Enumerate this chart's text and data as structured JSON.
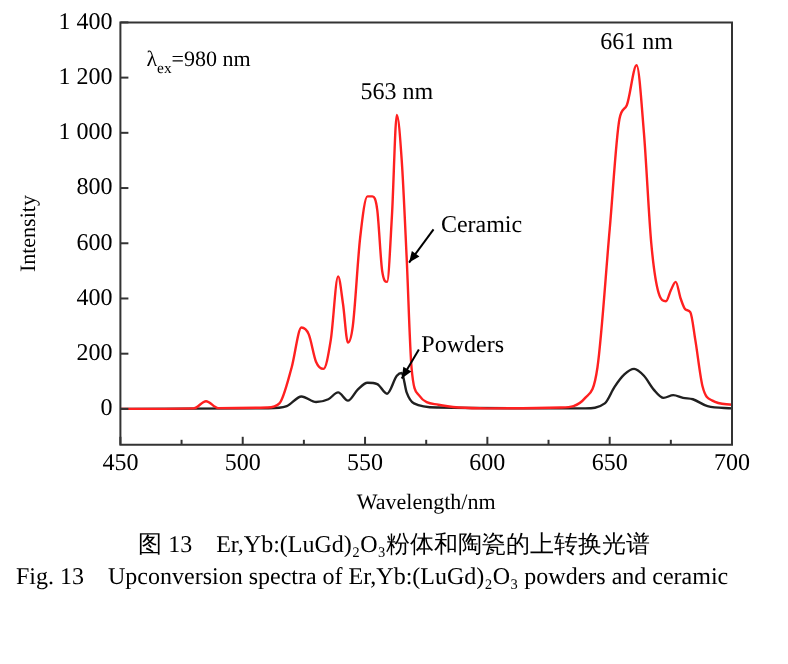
{
  "chart_data": {
    "type": "line",
    "title": "图 13　Er,Yb:(LuGd)₂O₃粉体和陶瓷的上转换光谱",
    "subtitle": "Fig. 13　Upconversion spectra of Er,Yb:(LuGd)₂O₃ powders and ceramic",
    "xlabel": "Wavelength/nm",
    "ylabel": "Intensity",
    "xlim": [
      450,
      700
    ],
    "xticks": [
      450,
      500,
      550,
      600,
      650,
      700
    ],
    "ylim": [
      -130,
      1400
    ],
    "yticks": [
      0,
      200,
      400,
      600,
      800,
      {
        "value": 1000,
        "label": "1 000"
      },
      {
        "value": 1200,
        "label": "1 200"
      },
      {
        "value": 1400,
        "label": "1 400"
      }
    ],
    "grid": false,
    "legend": false,
    "marker": "none",
    "line_style": "solid",
    "annotations": [
      "λ$_{ex}$=980 nm",
      {
        "text": "563 nm",
        "x": 563,
        "y": 1065
      },
      {
        "text": "661 nm",
        "x": 661,
        "y": 1245
      }
    ],
    "series": [
      {
        "name": "Ceramic",
        "color": "#ff2020",
        "x": [
          450,
          480,
          485,
          490,
          510,
          515,
          520,
          524,
          527,
          530,
          533,
          536,
          539,
          541,
          543,
          545,
          548,
          551,
          553,
          555,
          557,
          559,
          561,
          563,
          565,
          567,
          569,
          572,
          580,
          600,
          630,
          640,
          645,
          650,
          654,
          657,
          661,
          664,
          667,
          670,
          673,
          675,
          677,
          679,
          681,
          683,
          685,
          688,
          692,
          700
        ],
        "values": [
          0,
          2,
          28,
          3,
          5,
          20,
          150,
          295,
          270,
          170,
          145,
          250,
          480,
          380,
          240,
          300,
          620,
          770,
          770,
          720,
          500,
          460,
          700,
          1065,
          900,
          550,
          150,
          50,
          15,
          2,
          5,
          40,
          150,
          650,
          1050,
          1100,
          1245,
          1000,
          600,
          420,
          390,
          430,
          460,
          400,
          360,
          350,
          250,
          80,
          30,
          15
        ]
      },
      {
        "name": "Powders",
        "color": "#202020",
        "x": [
          450,
          510,
          518,
          524,
          530,
          535,
          539,
          543,
          547,
          551,
          555,
          559,
          563,
          565,
          567,
          570,
          580,
          640,
          648,
          652,
          656,
          660,
          664,
          668,
          672,
          676,
          680,
          684,
          690,
          700
        ],
        "values": [
          0,
          2,
          10,
          45,
          25,
          35,
          60,
          30,
          70,
          95,
          90,
          55,
          120,
          130,
          60,
          20,
          5,
          2,
          20,
          80,
          125,
          145,
          120,
          70,
          40,
          50,
          40,
          35,
          10,
          2
        ]
      }
    ]
  }
}
